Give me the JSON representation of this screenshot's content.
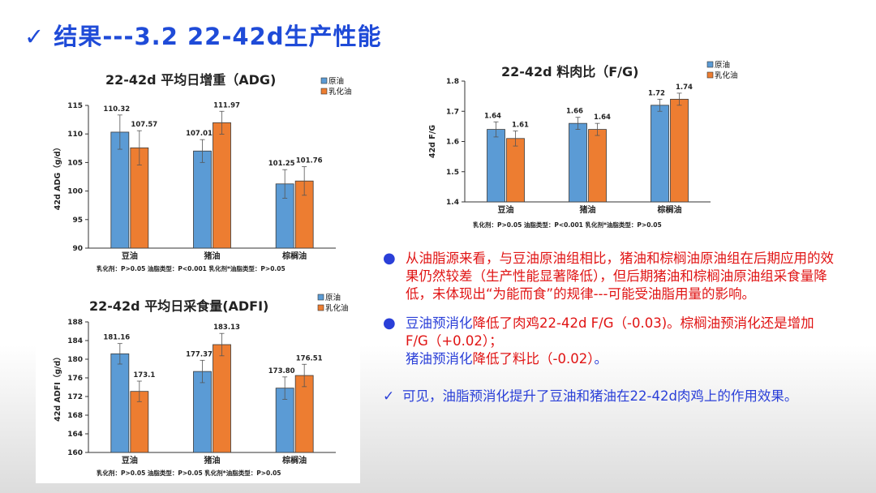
{
  "slide": {
    "title": "✓  结果---3.2   22-42d生产性能"
  },
  "chart_data": [
    {
      "type": "bar",
      "title": "22-42d  平均日增重（ADG)",
      "ylabel": "42d ADG（g/d）",
      "ylim": [
        90,
        115
      ],
      "yticks": [
        90,
        95,
        100,
        105,
        110,
        115
      ],
      "categories": [
        "豆油",
        "猪油",
        "棕榈油"
      ],
      "series": [
        {
          "name": "原油",
          "color": "#5b9bd5",
          "values": [
            110.32,
            107.01,
            101.25
          ],
          "labels": [
            "110.32",
            "107.01",
            "101.25"
          ]
        },
        {
          "name": "乳化油",
          "color": "#ed7d31",
          "values": [
            107.57,
            111.97,
            101.76
          ],
          "labels": [
            "107.57",
            "111.97",
            "101.76"
          ]
        }
      ],
      "footnote": "乳化剂：P>0.05    油脂类型：P<0.001   乳化剂*油脂类型：P>0.05"
    },
    {
      "type": "bar",
      "title": "22-42d  料肉比（F/G)",
      "ylabel": "42d F/G",
      "ylim": [
        1.4,
        1.8
      ],
      "yticks": [
        1.4,
        1.5,
        1.6,
        1.7,
        1.8
      ],
      "categories": [
        "豆油",
        "猪油",
        "棕榈油"
      ],
      "series": [
        {
          "name": "原油",
          "color": "#5b9bd5",
          "values": [
            1.64,
            1.66,
            1.72
          ],
          "labels": [
            "1.64",
            "1.66",
            "1.72"
          ]
        },
        {
          "name": "乳化油",
          "color": "#ed7d31",
          "values": [
            1.61,
            1.64,
            1.74
          ],
          "labels": [
            "1.61",
            "1.64",
            "1.74"
          ]
        }
      ],
      "footnote": "乳化剂：P>0.05    油脂类型：P<0.001   乳化剂*油脂类型：P>0.05"
    },
    {
      "type": "bar",
      "title": "22-42d  平均日采食量(ADFI)",
      "ylabel": "42d ADFI（g/d）",
      "ylim": [
        160,
        188
      ],
      "yticks": [
        160,
        164,
        168,
        172,
        176,
        180,
        184,
        188
      ],
      "categories": [
        "豆油",
        "猪油",
        "棕榈油"
      ],
      "series": [
        {
          "name": "原油",
          "color": "#5b9bd5",
          "values": [
            181.16,
            177.37,
            173.8
          ],
          "labels": [
            "181.16",
            "177.37",
            "173.80"
          ]
        },
        {
          "name": "乳化油",
          "color": "#ed7d31",
          "values": [
            173.1,
            183.13,
            176.51
          ],
          "labels": [
            "173.1",
            "183.13",
            "176.51"
          ]
        }
      ],
      "footnote": "乳化剂：P>0.05    油脂类型：P>0.05   乳化剂*油脂类型：P>0.05"
    }
  ],
  "text": {
    "b1": "从油脂源来看，与豆油原油组相比，猪油和棕榈油原油组在后期应用的效果仍然较差（生产性能显著降低），但后期猪油和棕榈油原油组采食量降低，未体现出“为能而食”的规律---可能受油脂用量的影响。",
    "b2_1": "豆油预消化",
    "b2_2": "降低了肉鸡22-42d F/G（-0.03)。棕榈油预消化还是",
    "b2_3": "增加F/G（+0.02）；",
    "b2_4": "猪油预消化",
    "b2_5": "降低了料比（-0.02）",
    "b2_6": "。",
    "b3_check": "✓",
    "b3": "可见，油脂预消化提升了豆油和猪油在22-42d肉鸡上的作用效果。"
  }
}
